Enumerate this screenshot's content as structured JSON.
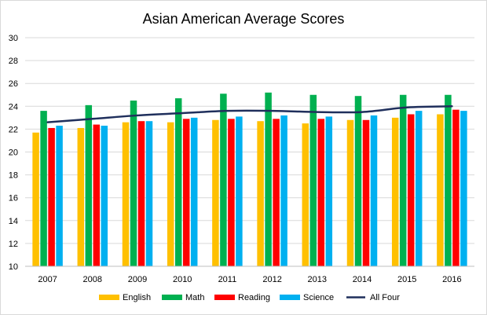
{
  "chart_data": {
    "type": "bar",
    "title": "Asian American Average Scores",
    "categories": [
      "2007",
      "2008",
      "2009",
      "2010",
      "2011",
      "2012",
      "2013",
      "2014",
      "2015",
      "2016"
    ],
    "series": [
      {
        "name": "English",
        "color": "#FFC000",
        "values": [
          21.7,
          22.1,
          22.6,
          22.6,
          22.8,
          22.7,
          22.5,
          22.8,
          23.0,
          23.3
        ]
      },
      {
        "name": "Math",
        "color": "#00B050",
        "values": [
          23.6,
          24.1,
          24.5,
          24.7,
          25.1,
          25.2,
          25.0,
          24.9,
          25.0,
          25.0
        ]
      },
      {
        "name": "Reading",
        "color": "#FF0000",
        "values": [
          22.1,
          22.4,
          22.7,
          22.9,
          22.9,
          22.9,
          22.9,
          22.8,
          23.3,
          23.7
        ]
      },
      {
        "name": "Science",
        "color": "#00B0F0",
        "values": [
          22.3,
          22.3,
          22.7,
          23.0,
          23.1,
          23.2,
          23.1,
          23.2,
          23.6,
          23.6
        ]
      }
    ],
    "line_series": {
      "name": "All Four",
      "color": "#1F2F5C",
      "values": [
        22.6,
        22.9,
        23.2,
        23.4,
        23.6,
        23.6,
        23.5,
        23.5,
        23.9,
        24.0
      ]
    },
    "ylim": [
      10,
      30
    ],
    "yticks": [
      "10",
      "12",
      "14",
      "16",
      "18",
      "20",
      "22",
      "24",
      "26",
      "28",
      "30"
    ],
    "grid": "horizontal",
    "legend": "bottom"
  }
}
